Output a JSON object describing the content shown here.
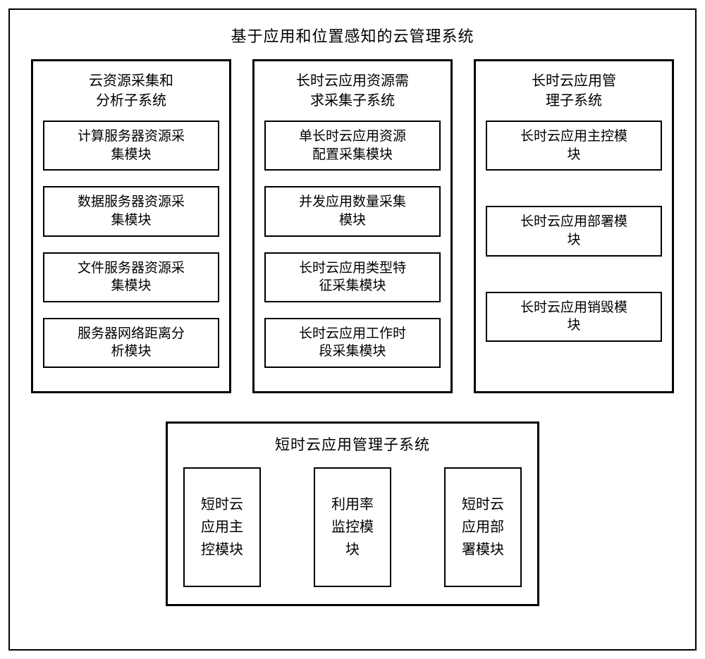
{
  "layout": {
    "outer_border_color": "#000000",
    "background_color": "#ffffff",
    "font_family": "SimSun",
    "title_fontsize": 22,
    "subsystem_title_fontsize": 20,
    "module_fontsize": 19,
    "bottom_module_fontsize": 20,
    "outer_border_width": 2,
    "subsystem_border_width": 3,
    "module_border_width": 2
  },
  "outer": {
    "title": "基于应用和位置感知的云管理系统"
  },
  "top_subsystems": [
    {
      "title": "云资源采集和\n分析子系统",
      "modules": [
        "计算服务器资源采\n集模块",
        "数据服务器资源采\n集模块",
        "文件服务器资源采\n集模块",
        "服务器网络距离分\n析模块"
      ]
    },
    {
      "title": "长时云应用资源需\n求采集子系统",
      "modules": [
        "单长时云应用资源\n配置采集模块",
        "并发应用数量采集\n模块",
        "长时云应用类型特\n征采集模块",
        "长时云应用工作时\n段采集模块"
      ]
    },
    {
      "title": "长时云应用管\n理子系统",
      "modules": [
        "长时云应用主控模\n块",
        "长时云应用部署模\n块",
        "长时云应用销毁模\n块"
      ]
    }
  ],
  "bottom_subsystem": {
    "title": "短时云应用管理子系统",
    "modules": [
      "短时云\n应用主\n控模块",
      "利用率\n监控模\n块",
      "短时云\n应用部\n署模块"
    ]
  }
}
